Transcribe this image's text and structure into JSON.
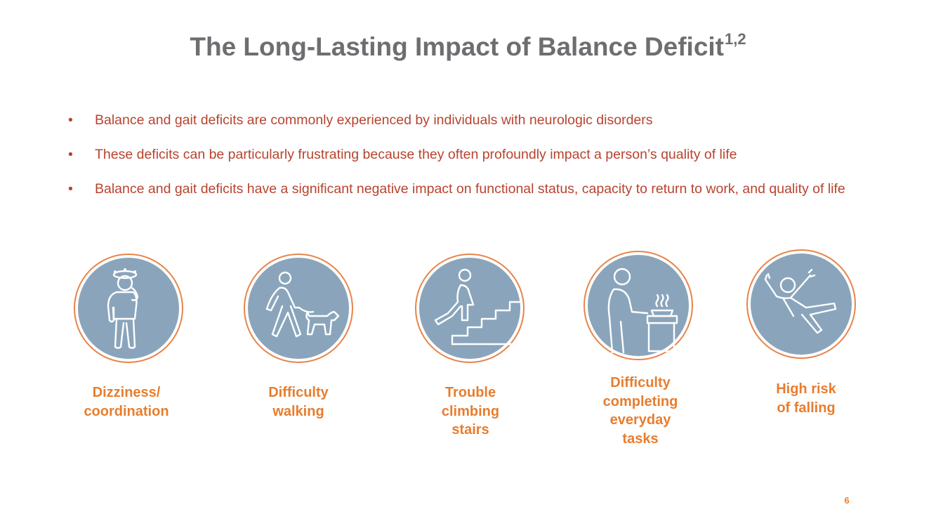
{
  "slide": {
    "title": "The Long-Lasting Impact of Balance Deficit",
    "title_superscript": "1,2",
    "bullet_glyph": "•",
    "bullets": [
      "Balance and gait deficits are commonly experienced by individuals with neurologic disorders",
      "These deficits can be particularly frustrating because they often profoundly impact a person’s quality of life",
      "Balance and gait deficits have a significant negative impact on functional status, capacity to return to work, and quality of life"
    ],
    "icons": [
      {
        "icon": "dizzy-person-icon",
        "caption": "Dizziness/\ncoordination"
      },
      {
        "icon": "walking-dog-icon",
        "caption": "Difficulty\nwalking"
      },
      {
        "icon": "climbing-stairs-icon",
        "caption": "Trouble\nclimbing\nstairs"
      },
      {
        "icon": "cooking-person-icon",
        "caption": "Difficulty\ncompleting\neveryday\ntasks"
      },
      {
        "icon": "falling-person-icon",
        "caption": "High risk\nof falling"
      }
    ],
    "page_number": "6"
  },
  "colors": {
    "title": "#6d6e71",
    "bullet_text": "#b8432f",
    "caption": "#e87d2e",
    "circle_fill": "#8aa5bb",
    "circle_ring": "#e8844a",
    "icon_stroke": "#ffffff"
  }
}
